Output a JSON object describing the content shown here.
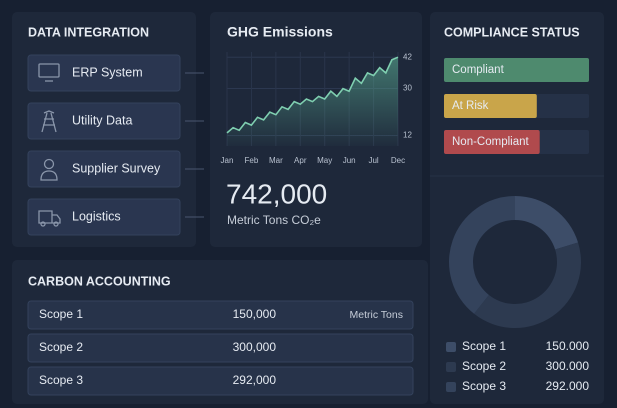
{
  "integration": {
    "title": "DATA INTEGRATION",
    "items": [
      "ERP System",
      "Utility Data",
      "Supplier Survey",
      "Logistics"
    ]
  },
  "ghg": {
    "total": "742,000",
    "unit": "Metric Tons CO₂e"
  },
  "carbon": {
    "title": "CARBON ACCOUNTING",
    "unit": "Metric Tons",
    "rows": [
      [
        "Scope 1",
        "150,000"
      ],
      [
        "Scope 2",
        "300,000"
      ],
      [
        "Scope 3",
        "292,000"
      ]
    ]
  },
  "chart_data": [
    {
      "type": "line",
      "title": "GHG Emissions",
      "x": [
        0,
        1,
        2,
        3,
        4,
        5,
        6,
        7,
        8,
        9,
        10,
        11,
        12,
        13,
        14,
        15,
        16,
        17,
        18,
        19,
        20,
        21,
        22,
        23,
        24,
        25,
        26,
        27,
        28
      ],
      "values": [
        13,
        15,
        14,
        17,
        16,
        19,
        18,
        21,
        20,
        23,
        22,
        25,
        24,
        26,
        25,
        27,
        26,
        29,
        27,
        30,
        29,
        34,
        32,
        36,
        35,
        38,
        36,
        41,
        42
      ],
      "color": "#7fcfb0",
      "xlim": [
        0,
        28
      ],
      "xticks": [
        {
          "value": 0,
          "label": "Jan"
        },
        {
          "value": 4,
          "label": "Feb"
        },
        {
          "value": 8,
          "label": "Mar"
        },
        {
          "value": 12,
          "label": "Apr"
        },
        {
          "value": 16,
          "label": "May"
        },
        {
          "value": 20,
          "label": "Jun"
        },
        {
          "value": 24,
          "label": "Jul"
        },
        {
          "value": 28,
          "label": "Dec"
        }
      ],
      "ylim": [
        8,
        44
      ],
      "yticks": [
        12,
        30,
        42
      ],
      "grid": true
    },
    {
      "type": "hbar",
      "title": "COMPLIANCE STATUS",
      "categories": [
        "Compliant",
        "At Risk",
        "Non-Compliant"
      ],
      "values": [
        100,
        64,
        66
      ],
      "colors": [
        "#4e8a6e",
        "#c9a54a",
        "#b04a4d"
      ],
      "xlim": [
        0,
        100
      ]
    },
    {
      "type": "donut",
      "categories": [
        "Scope 1",
        "Scope 2",
        "Scope 3"
      ],
      "values": [
        150000,
        300000,
        292000
      ],
      "value_labels": [
        "150.000",
        "300.000",
        "292.000"
      ],
      "colors": [
        "#3d4d68",
        "#2d3a50",
        "#34435c"
      ]
    }
  ]
}
